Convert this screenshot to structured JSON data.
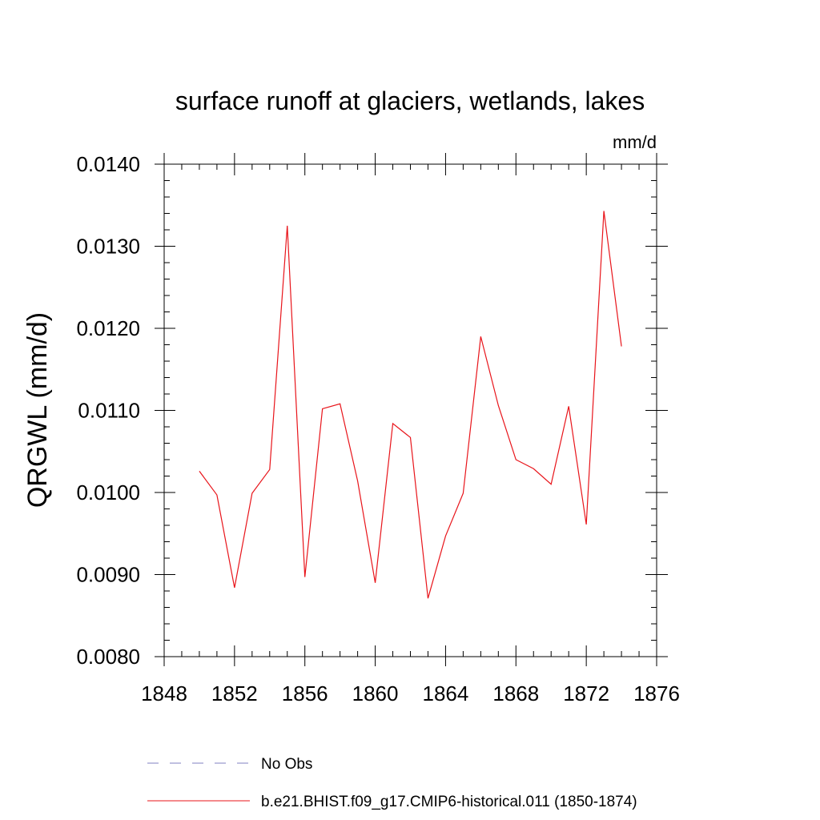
{
  "chart_data": {
    "type": "line",
    "title": "surface runoff at glaciers, wetlands, lakes",
    "units_label": "mm/d",
    "ylabel": "QRGWL  (mm/d)",
    "xlabel": "",
    "xlim": [
      1848,
      1876
    ],
    "ylim": [
      0.008,
      0.014
    ],
    "x_ticks": [
      1848,
      1852,
      1856,
      1860,
      1864,
      1868,
      1872,
      1876
    ],
    "x_tick_labels": [
      "1848",
      "1852",
      "1856",
      "1860",
      "1864",
      "1868",
      "1872",
      "1876"
    ],
    "y_ticks": [
      0.008,
      0.009,
      0.01,
      0.011,
      0.012,
      0.013,
      0.014
    ],
    "y_tick_labels": [
      "0.0080",
      "0.0090",
      "0.0100",
      "0.0110",
      "0.0120",
      "0.0130",
      "0.0140"
    ],
    "grid": false,
    "legend_position": "bottom",
    "legend": [
      {
        "label": "No Obs",
        "style": "dashed",
        "color": "#8080c0"
      },
      {
        "label": "b.e21.BHIST.f09_g17.CMIP6-historical.011 (1850-1874)",
        "style": "solid",
        "color": "#e8141a"
      }
    ],
    "series": [
      {
        "name": "b.e21.BHIST.f09_g17.CMIP6-historical.011 (1850-1874)",
        "color": "#e8141a",
        "x": [
          1850,
          1851,
          1852,
          1853,
          1854,
          1855,
          1856,
          1857,
          1858,
          1859,
          1860,
          1861,
          1862,
          1863,
          1864,
          1865,
          1866,
          1867,
          1868,
          1869,
          1870,
          1871,
          1872,
          1873,
          1874
        ],
        "values": [
          0.01026,
          0.00997,
          0.00884,
          0.00999,
          0.01028,
          0.01325,
          0.00897,
          0.01102,
          0.01108,
          0.01014,
          0.0089,
          0.01084,
          0.01067,
          0.00871,
          0.00947,
          0.00999,
          0.0119,
          0.01106,
          0.0104,
          0.01029,
          0.0101,
          0.01105,
          0.00961,
          0.01343,
          0.01178
        ]
      }
    ]
  }
}
